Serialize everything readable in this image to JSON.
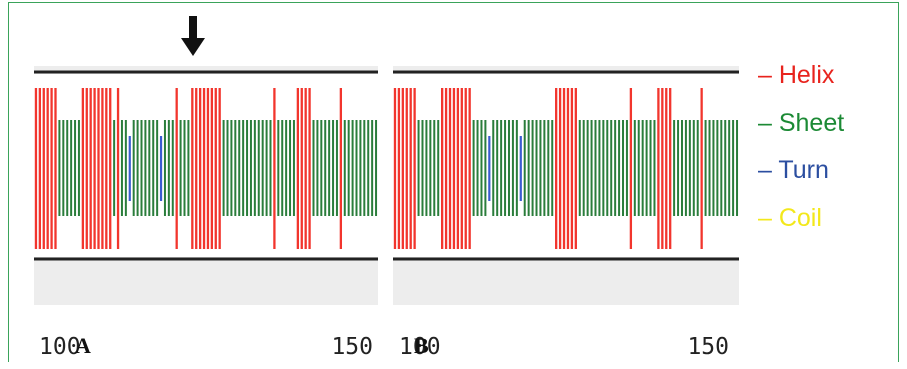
{
  "legend": [
    {
      "label": "– Helix",
      "color": "#e8231d"
    },
    {
      "label": "– Sheet",
      "color": "#1c8a35"
    },
    {
      "label": "– Turn",
      "color": "#2b4ea0"
    },
    {
      "label": "– Coil",
      "color": "#f3e81b"
    }
  ],
  "colors": {
    "helix": "#f2352d",
    "sheet": "#2a7d3b",
    "turn": "#3b5bd0"
  },
  "panels": [
    {
      "label": "A",
      "axis_start": "100",
      "axis_end": "150",
      "marker": "down-arrow-icon",
      "residues": [
        "H",
        "H",
        "H",
        "H",
        "H",
        "H",
        "S",
        "S",
        "S",
        "S",
        "S",
        "S",
        "H",
        "H",
        "H",
        "H",
        "H",
        "H",
        "H",
        "H",
        "S",
        "H",
        "S",
        "S",
        "T",
        "S",
        "S",
        "S",
        "S",
        "S",
        "S",
        "S",
        "T",
        "S",
        "S",
        "S",
        "H",
        "S",
        "S",
        "S",
        "H",
        "H",
        "H",
        "H",
        "H",
        "H",
        "H",
        "H",
        "S",
        "S",
        "S",
        "S",
        "S",
        "S",
        "S",
        "S",
        "S",
        "S",
        "S",
        "S",
        "S",
        "H",
        "S",
        "S",
        "S",
        "S",
        "S",
        "H",
        "H",
        "H",
        "H",
        "S",
        "S",
        "S",
        "S",
        "S",
        "S",
        "S",
        "H",
        "S",
        "S",
        "S",
        "S",
        "S",
        "S",
        "S",
        "S",
        "S"
      ]
    },
    {
      "label": "B",
      "axis_start": "100",
      "axis_end": "150",
      "residues": [
        "H",
        "H",
        "H",
        "H",
        "H",
        "H",
        "S",
        "S",
        "S",
        "S",
        "S",
        "S",
        "H",
        "H",
        "H",
        "H",
        "H",
        "H",
        "H",
        "H",
        "S",
        "S",
        "S",
        "S",
        "T",
        "S",
        "S",
        "S",
        "S",
        "S",
        "S",
        "S",
        "T",
        "S",
        "S",
        "S",
        "S",
        "S",
        "S",
        "S",
        "S",
        "H",
        "H",
        "H",
        "H",
        "H",
        "H",
        "S",
        "S",
        "S",
        "S",
        "S",
        "S",
        "S",
        "S",
        "S",
        "S",
        "S",
        "S",
        "S",
        "H",
        "S",
        "S",
        "S",
        "S",
        "S",
        "S",
        "H",
        "H",
        "H",
        "H",
        "S",
        "S",
        "S",
        "S",
        "S",
        "S",
        "S",
        "H",
        "S",
        "S",
        "S",
        "S",
        "S",
        "S",
        "S",
        "S",
        "S"
      ]
    }
  ]
}
